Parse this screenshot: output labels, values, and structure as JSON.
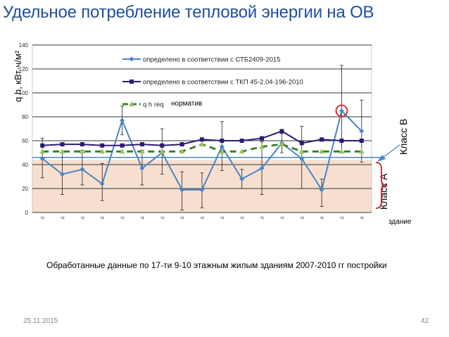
{
  "slide": {
    "title": "Удельное потребление тепловой энергии на ОВ",
    "caption": "Обработанные данные по 17-ти  9-10 этажным жилым зданиям 2007-2010 гг постройки",
    "date": "25.11.2015",
    "page_number": "42"
  },
  "chart_data": {
    "type": "line",
    "title": "",
    "ylabel": "q h, кВт·ч/м²",
    "xlabel": "здание",
    "ylim": [
      0,
      140
    ],
    "yticks": [
      0,
      20,
      40,
      60,
      80,
      100,
      120,
      140
    ],
    "categories": [
      "Д",
      "Д",
      "Д",
      "Д",
      "Д",
      "Д",
      "Д",
      "Д",
      "Д",
      "Д",
      "Д",
      "Д",
      "Д",
      "Д",
      "Д",
      "Д",
      "Д"
    ],
    "series": [
      {
        "name": "определено в соответствии с  СТБ2409-2015",
        "color": "#4a86c5",
        "marker": "diamond",
        "values": [
          45,
          32,
          36,
          24,
          77,
          37,
          50,
          19,
          19,
          55,
          28,
          37,
          58,
          45,
          19,
          85,
          68
        ],
        "error_low": [
          29,
          15,
          23,
          10,
          65,
          23,
          32,
          2,
          4,
          35,
          20,
          15,
          50,
          20,
          5,
          50,
          42
        ],
        "error_high": [
          62,
          50,
          52,
          41,
          89,
          52,
          70,
          34,
          33,
          76,
          36,
          59,
          66,
          72,
          28,
          123,
          94
        ]
      },
      {
        "name": "определено в соответствии с ТКП 45-2.04-196-2010",
        "color": "#2e1a6e",
        "marker": "square",
        "values": [
          56,
          57,
          57,
          56,
          56,
          57,
          56,
          57,
          61,
          60,
          60,
          62,
          68,
          58,
          61,
          60,
          60
        ]
      },
      {
        "name": "q h req",
        "color": "#3a7a2a",
        "marker": "triangle",
        "dash": true,
        "values": [
          51,
          51,
          51,
          51,
          51,
          51,
          51,
          51,
          57,
          51,
          51,
          55,
          57,
          51,
          51,
          51,
          51
        ]
      }
    ],
    "reference_line": {
      "value": 46,
      "color": "#4a86c5"
    },
    "class_band": {
      "from": 0,
      "to": 44,
      "color": "#f7dfd0"
    },
    "legend_extra": "норматив",
    "class_a_label": "Класс А",
    "class_b_label": "Класс В",
    "highlighted_point": {
      "series": 0,
      "index": 15,
      "color": "#e02020"
    }
  }
}
